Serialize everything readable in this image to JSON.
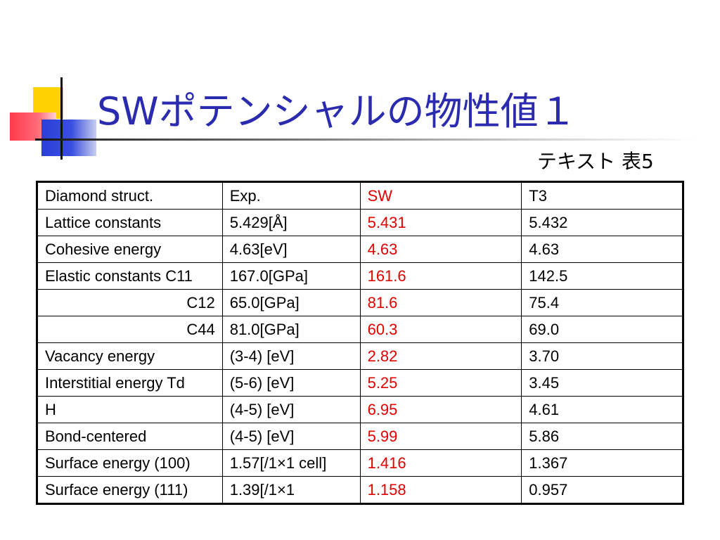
{
  "slide": {
    "title": "SWポテンシャルの物性値１",
    "caption": "テキスト 表5",
    "accent_color": "#2b2bb0",
    "highlight_color": "#e00000"
  },
  "table": {
    "header": {
      "label": "Diamond struct.",
      "exp": "Exp.",
      "sw": "SW",
      "t3": "T3"
    },
    "rows": [
      {
        "label": "Lattice constants",
        "exp": "5.429[Å]",
        "sw": "5.431",
        "t3": "5.432"
      },
      {
        "label": "Cohesive energy",
        "exp": "4.63[eV]",
        "sw": "4.63",
        "t3": "4.63"
      },
      {
        "label": "Elastic constants C11",
        "exp": "167.0[GPa]",
        "sw": "161.6",
        "t3": "142.5"
      },
      {
        "label": "C12",
        "exp": "65.0[GPa]",
        "sw": "81.6",
        "t3": "75.4"
      },
      {
        "label": "C44",
        "exp": "81.0[GPa]",
        "sw": "60.3",
        "t3": "69.0"
      },
      {
        "label": "Vacancy energy",
        "exp": "(3-4) [eV]",
        "sw": "2.82",
        "t3": "3.70"
      },
      {
        "label": "Interstitial energy Td",
        "exp": "(5-6) [eV]",
        "sw": "5.25",
        "t3": "3.45"
      },
      {
        "label": "H",
        "exp": "(4-5) [eV]",
        "sw": "6.95",
        "t3": "4.61"
      },
      {
        "label": "Bond-centered",
        "exp": "(4-5) [eV]",
        "sw": "5.99",
        "t3": "5.86"
      },
      {
        "label": "Surface energy (100)",
        "exp": "1.57[/1×1 cell]",
        "sw": "1.416",
        "t3": "1.367"
      },
      {
        "label": "Surface energy (111)",
        "exp": "1.39[/1×1",
        "sw": "1.158",
        "t3": "0.957"
      }
    ]
  }
}
